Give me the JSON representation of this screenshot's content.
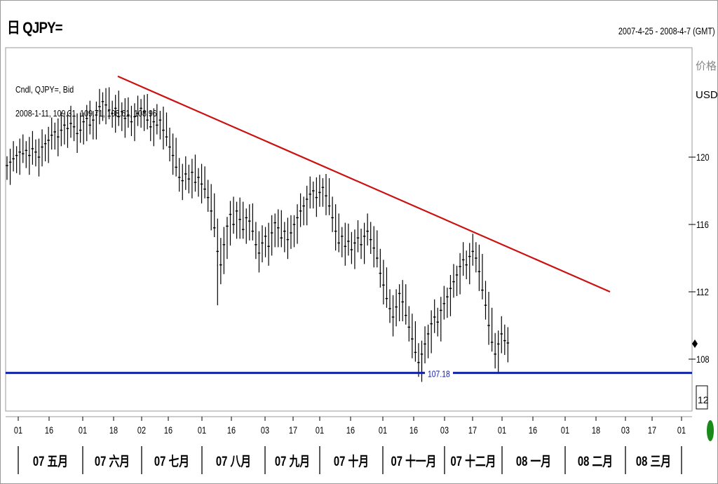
{
  "header": {
    "title": "日 QJPY=",
    "range": "2007-4-25 - 2008-4-7 (GMT)"
  },
  "info": {
    "line1": "Cndl, QJPY=, Bid",
    "line2": "2008-1-11, 109.31, 109.71, 108.61, 108.96"
  },
  "axis": {
    "unit_top": "价格",
    "unit": "USD",
    "zoom_label": "12"
  },
  "colors": {
    "trendline": "#cc1111",
    "support": "#1122aa",
    "candles": "#000000",
    "indicator": "#1a8a1a"
  },
  "chart_data": {
    "type": "candlestick",
    "ylim": [
      104,
      125
    ],
    "y_ticks": [
      120,
      116,
      112,
      108
    ],
    "x_ticks": [
      "01",
      "16",
      "01",
      "18",
      "02",
      "16",
      "01",
      "16",
      "03",
      "17",
      "01",
      "16",
      "01",
      "16",
      "03",
      "17",
      "01",
      "16",
      "01",
      "18",
      "03",
      "17",
      "01"
    ],
    "month_labels": [
      "07 五月",
      "07 六月",
      "07 七月",
      "07 八月",
      "07 九月",
      "07 十月",
      "07 十一月",
      "07 十二月",
      "08 一月",
      "08 二月",
      "08 三月"
    ],
    "series_close": [
      119.5,
      119.7,
      119.9,
      120.1,
      120.3,
      120.2,
      120.4,
      120.1,
      120.5,
      120.3,
      120.0,
      120.6,
      120.8,
      121.0,
      121.3,
      121.5,
      121.2,
      121.6,
      121.9,
      121.7,
      122.0,
      121.8,
      121.4,
      121.6,
      122.1,
      122.3,
      121.9,
      122.2,
      122.5,
      123.0,
      123.3,
      123.1,
      122.8,
      122.6,
      122.9,
      122.4,
      122.7,
      122.3,
      122.5,
      122.1,
      122.4,
      122.6,
      122.9,
      122.7,
      122.2,
      121.8,
      122.1,
      121.9,
      122.2,
      121.6,
      121.2,
      120.6,
      120.1,
      119.4,
      118.8,
      118.6,
      119.0,
      118.7,
      119.1,
      118.5,
      118.8,
      118.4,
      118.1,
      117.6,
      116.8,
      115.8,
      114.4,
      113.6,
      114.8,
      115.9,
      116.6,
      116.0,
      116.8,
      116.3,
      115.7,
      116.4,
      116.2,
      115.6,
      114.8,
      114.3,
      114.9,
      115.3,
      114.7,
      115.5,
      116.1,
      115.8,
      115.2,
      115.6,
      115.1,
      115.5,
      116.0,
      116.4,
      116.8,
      117.1,
      117.5,
      117.8,
      118.0,
      117.6,
      117.9,
      118.2,
      117.7,
      117.1,
      116.4,
      115.6,
      114.9,
      115.3,
      114.7,
      115.0,
      114.5,
      114.9,
      115.2,
      114.8,
      115.3,
      115.6,
      115.1,
      114.6,
      114.0,
      113.1,
      112.4,
      111.6,
      111.0,
      110.5,
      111.1,
      111.9,
      111.4,
      110.6,
      109.9,
      109.2,
      108.4,
      107.8,
      108.3,
      108.9,
      109.5,
      110.1,
      110.5,
      110.2,
      110.9,
      111.3,
      111.7,
      112.2,
      112.6,
      113.0,
      113.5,
      113.9,
      113.6,
      114.1,
      114.4,
      114.0,
      113.2,
      112.1,
      111.2,
      110.0,
      109.0,
      108.3,
      108.9,
      109.5,
      109.1,
      108.96
    ]
  },
  "lines": {
    "support_label": "107.18",
    "support_value": 107.18,
    "trend_start": {
      "date": "2007-6-18",
      "value": 124.8
    },
    "trend_end": {
      "date": "2008-2-25",
      "value": 112.0
    }
  }
}
